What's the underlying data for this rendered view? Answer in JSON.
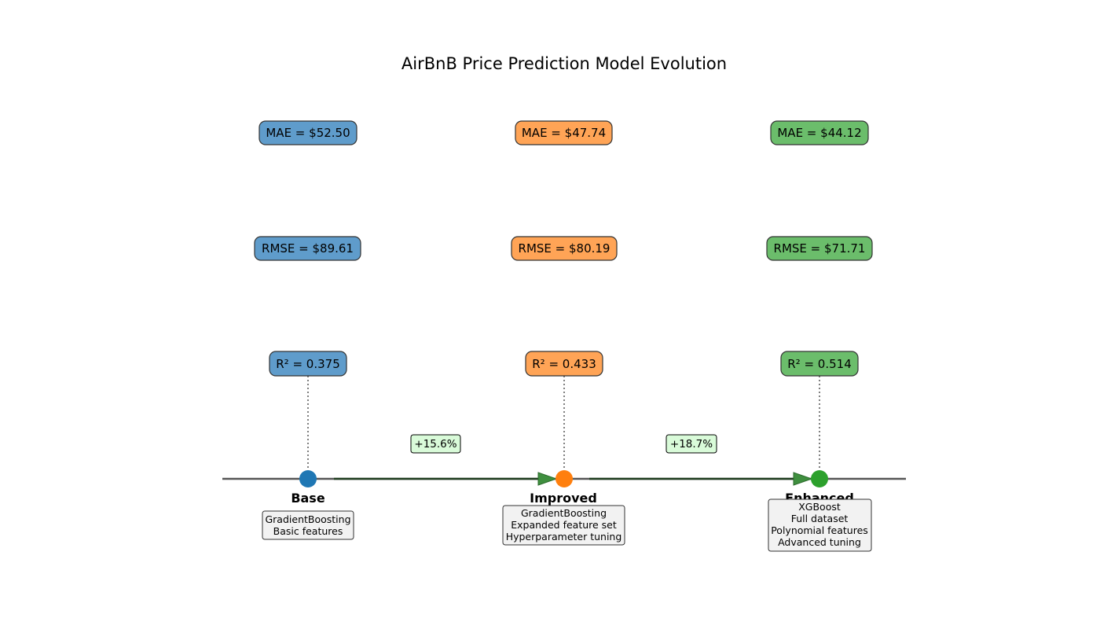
{
  "title": "AirBnB Price Prediction Model Evolution",
  "stages": [
    {
      "name": "Base",
      "color": "#1f77b4",
      "fill": "#5f9ccb",
      "mae": "MAE = $52.50",
      "rmse": "RMSE = $89.61",
      "r2": "R² = 0.375",
      "desc": [
        "GradientBoosting",
        "Basic features"
      ]
    },
    {
      "name": "Improved",
      "color": "#ff7f0e",
      "fill": "#ffa456",
      "mae": "MAE = $47.74",
      "rmse": "RMSE = $80.19",
      "r2": "R² = 0.433",
      "desc": [
        "GradientBoosting",
        "Expanded feature set",
        "Hyperparameter tuning"
      ]
    },
    {
      "name": "Enhanced",
      "color": "#2ca02c",
      "fill": "#6bbd6b",
      "mae": "MAE = $44.12",
      "rmse": "RMSE = $71.71",
      "r2": "R² = 0.514",
      "desc": [
        "XGBoost",
        "Full dataset",
        "Polynomial features",
        "Advanced tuning"
      ]
    }
  ],
  "improvements": [
    "+15.6%",
    "+18.7%"
  ],
  "colors": {
    "timeline": "#555555",
    "arrow": "#1e3d1e",
    "arrowhead": "#3f8f3f",
    "improvement_fill": "#d9fbd9",
    "desc_fill": "#f2f2f2",
    "connector": "#808080"
  }
}
